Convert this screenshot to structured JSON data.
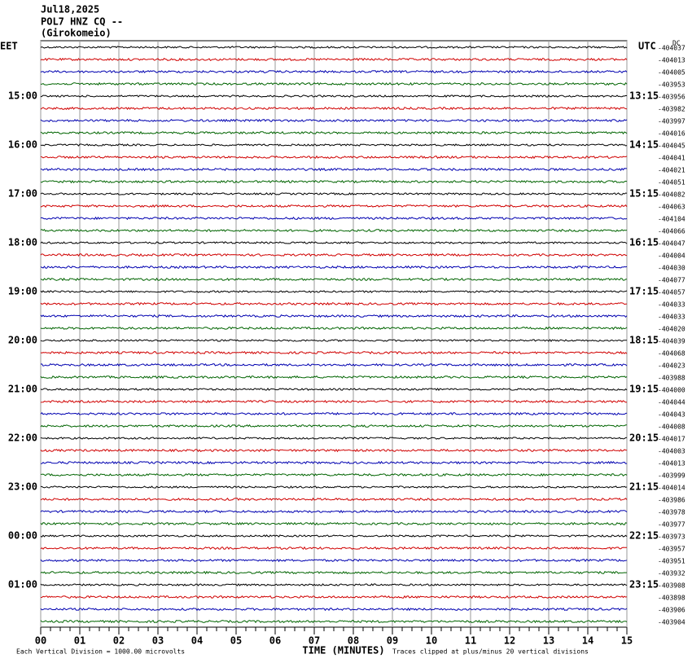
{
  "header": {
    "date": "Jul18,2025",
    "station": "POL7 HNZ CQ --",
    "location": "(Girokomeio)"
  },
  "left_axis": {
    "title": "EET",
    "labels": [
      "15:00",
      "16:00",
      "17:00",
      "18:00",
      "19:00",
      "20:00",
      "21:00",
      "22:00",
      "23:00",
      "00:00",
      "01:00"
    ]
  },
  "right_axis": {
    "title": "UTC",
    "corner": "DC",
    "labels": [
      "13:15",
      "14:15",
      "15:15",
      "16:15",
      "17:15",
      "18:15",
      "19:15",
      "20:15",
      "21:15",
      "22:15",
      "23:15"
    ]
  },
  "trace_offsets": [
    -404037,
    -404013,
    -404005,
    -403953,
    -403956,
    -403982,
    -403997,
    -404016,
    -404045,
    -404041,
    -404021,
    -404051,
    -404082,
    -404063,
    -404104,
    -404066,
    -404047,
    -404004,
    -404030,
    -404077,
    -404057,
    -404033,
    -404033,
    -404020,
    -404039,
    -404068,
    -404023,
    -403988,
    -404000,
    -404044,
    -404043,
    -404008,
    -404017,
    -404003,
    -404013,
    -403999,
    -404014,
    -403986,
    -403978,
    -403977,
    -403973,
    -403957,
    -403951,
    -403932,
    -403908,
    -403898,
    -403906,
    -403904
  ],
  "x_axis": {
    "title": "TIME (MINUTES)",
    "labels": [
      "00",
      "01",
      "02",
      "03",
      "04",
      "05",
      "06",
      "07",
      "08",
      "09",
      "10",
      "11",
      "12",
      "13",
      "14",
      "15"
    ]
  },
  "footer": {
    "scale_note": "Each Vertical Division = 1000.00 microvolts",
    "clip_note": "Traces clipped at plus/minus 20 vertical divisions"
  }
}
